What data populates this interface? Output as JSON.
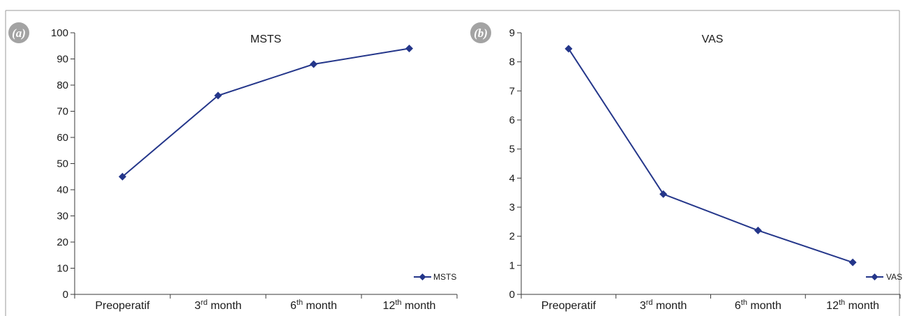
{
  "colors": {
    "series": "#24368a",
    "axis": "#3a3a3a",
    "frame": "#9a9a9a",
    "badge": "#a3a3a3"
  },
  "chart_data": [
    {
      "type": "line",
      "panel_label": "(a)",
      "title": "MSTS",
      "categories": [
        {
          "base": "Preoperatif",
          "sup": "",
          "rest": ""
        },
        {
          "base": "3",
          "sup": "rd",
          "rest": " month"
        },
        {
          "base": "6",
          "sup": "th",
          "rest": " month"
        },
        {
          "base": "12",
          "sup": "th",
          "rest": " month"
        }
      ],
      "series": [
        {
          "name": "MSTS",
          "values": [
            45,
            76,
            88,
            94
          ]
        }
      ],
      "ylim": [
        0,
        100
      ],
      "yticks": [
        "0",
        "10",
        "20",
        "30",
        "40",
        "50",
        "60",
        "70",
        "80",
        "90",
        "100"
      ],
      "legend_position": "bottom-right",
      "grid": false
    },
    {
      "type": "line",
      "panel_label": "(b)",
      "title": "VAS",
      "categories": [
        {
          "base": "Preoperatif",
          "sup": "",
          "rest": ""
        },
        {
          "base": "3",
          "sup": "rd",
          "rest": " month"
        },
        {
          "base": "6",
          "sup": "th",
          "rest": " month"
        },
        {
          "base": "12",
          "sup": "th",
          "rest": " month"
        }
      ],
      "series": [
        {
          "name": "VAS",
          "values": [
            8.45,
            3.45,
            2.2,
            1.1
          ]
        }
      ],
      "ylim": [
        0,
        9
      ],
      "yticks": [
        "0",
        "1",
        "2",
        "3",
        "4",
        "5",
        "6",
        "7",
        "8",
        "9"
      ],
      "legend_position": "bottom-right",
      "grid": false
    }
  ]
}
